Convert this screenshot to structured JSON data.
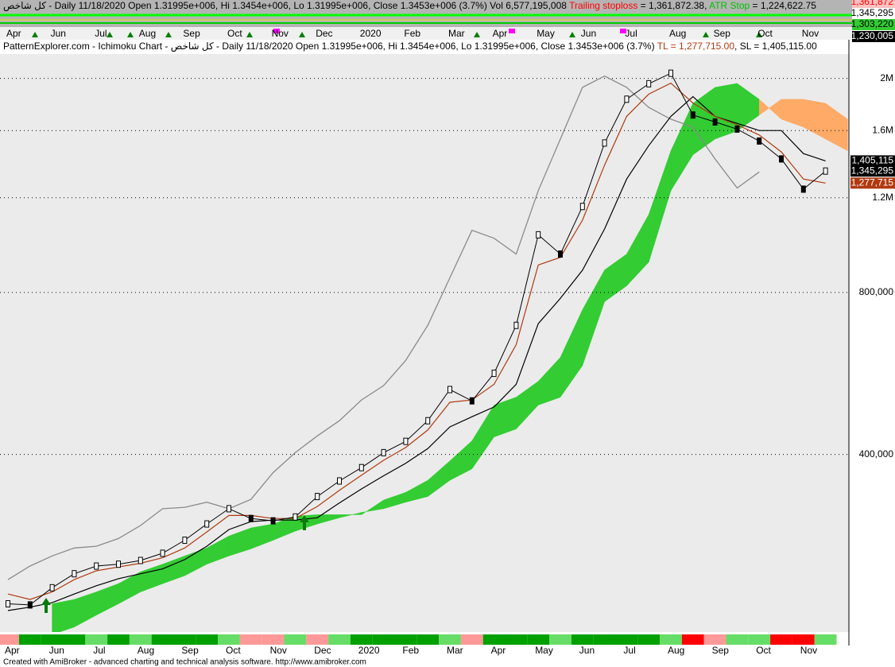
{
  "chart_data": {
    "type": "ichimoku",
    "header": "كل شاخص - Daily 11/18/2020 Open 1.31995e+006, Hi 1.3454e+006, Lo 1.31995e+006, Close 1.3453e+006 (3.7%) Vol 6,577,195,008 ",
    "header_alerts": [
      {
        "text": "Trailing stoploss",
        "color": "#ff0000"
      },
      {
        "text": " = 1,361,872.38, ",
        "color": "#000000"
      },
      {
        "text": "ATR Stop",
        "color": "#00c000"
      },
      {
        "text": " = 1,224,622.75",
        "color": "#000000"
      }
    ],
    "top_price_labels": [
      {
        "text": "1,361,872",
        "color": "#ff0000",
        "background": "#ffc0c0"
      },
      {
        "text": "1,345,295",
        "color": "#000000",
        "background": "#ffffff"
      },
      {
        "text": "1,303,220",
        "color": "#000000",
        "background": "#33cc33"
      },
      {
        "text": "1,230,005",
        "color": "#ffffff",
        "background": "#000000"
      }
    ],
    "title": "PatternExplorer.com - Ichimoku Chart - كل شاخص - Daily 11/18/2020 Open 1.31995e+006, Hi 1.3454e+006, Lo 1.31995e+006, Close 1.3453e+006 (3.7%) ",
    "status_items": [
      {
        "text": "TL = 1,277,715.00",
        "color": "#b03a10"
      },
      {
        "text": ", SL = 1,405,115.00",
        "color": "#000000"
      }
    ],
    "categories": [
      "Apr",
      null,
      "Jun",
      null,
      "Jul",
      null,
      "Aug",
      null,
      "Sep",
      null,
      "Oct",
      null,
      "Nov",
      null,
      "Dec",
      null,
      "2020",
      null,
      "Feb",
      null,
      "Mar",
      null,
      "Apr",
      null,
      "May",
      null,
      "Jun",
      null,
      "Jul",
      null,
      "Aug",
      null,
      "Sep",
      null,
      "Oct",
      null,
      "Nov",
      null,
      null
    ],
    "log_scale": true,
    "grid": true,
    "ylim": [
      187000,
      2220000
    ],
    "yticks": [
      {
        "value": 400000,
        "label": "400,000"
      },
      {
        "value": 800000,
        "label": "800,000"
      },
      {
        "value": 1200000,
        "label": "1.2M"
      },
      {
        "value": 1600000,
        "label": "1.6M"
      },
      {
        "value": 2000000,
        "label": "2M"
      }
    ],
    "cloud": {
      "up_color": "#33cc33",
      "down_color": "#ffaa66",
      "span_a": [
        null,
        null,
        211000,
        215000,
        222000,
        230000,
        242000,
        250000,
        259000,
        268000,
        282000,
        292000,
        297000,
        307000,
        309000,
        309000,
        309000,
        329000,
        340000,
        358000,
        389000,
        424000,
        494000,
        511000,
        547000,
        606000,
        743000,
        881000,
        943000,
        1117000,
        1467000,
        1798000,
        1925000,
        1958000,
        1829000,
        1680000,
        1624000,
        1543000,
        1467000
      ],
      "span_b": [
        null,
        null,
        185000,
        191000,
        201000,
        211000,
        222000,
        230000,
        238000,
        250000,
        259000,
        267000,
        277000,
        288000,
        297000,
        305000,
        312000,
        317000,
        326000,
        334000,
        358000,
        376000,
        431000,
        446000,
        494000,
        511000,
        585000,
        769000,
        823000,
        911000,
        1237000,
        1442000,
        1543000,
        1597000,
        1709000,
        1829000,
        1829000,
        1798000,
        1680000
      ]
    },
    "series": [
      {
        "style": "line",
        "color": "#8a8a8a",
        "width": 1.3,
        "values": [
          234000,
          248000,
          259000,
          268000,
          270000,
          279000,
          295000,
          317000,
          319000,
          326000,
          317000,
          330000,
          370000,
          403000,
          433000,
          462000,
          505000,
          537000,
          598000,
          695000,
          852000,
          1044000,
          1009000,
          943000,
          1237000,
          1543000,
          1925000,
          2020000,
          1925000,
          1767000,
          1680000,
          1624000,
          1417000,
          1251000,
          1340000,
          null,
          null,
          null,
          null
        ]
      },
      {
        "style": "line",
        "color": "#000000",
        "width": 1.2,
        "values": [
          205000,
          208000,
          212000,
          220000,
          228000,
          235000,
          240000,
          245000,
          255000,
          270000,
          290000,
          300000,
          302000,
          302000,
          305000,
          325000,
          345000,
          365000,
          385000,
          410000,
          450000,
          470000,
          490000,
          540000,
          700000,
          780000,
          880000,
          1050000,
          1300000,
          1500000,
          1700000,
          1850000,
          1700000,
          1650000,
          1600000,
          1600000,
          1450000,
          1405115,
          null
        ],
        "value_labels": [
          null,
          null,
          null,
          null,
          null,
          null,
          null,
          null,
          null,
          null,
          null,
          null,
          null,
          null,
          null,
          null,
          null,
          null,
          null,
          null,
          null,
          null,
          null,
          null,
          null,
          null,
          null,
          null,
          null,
          null,
          null,
          null,
          null,
          null,
          null,
          null,
          null,
          "1,405,115",
          null
        ]
      },
      {
        "style": "line",
        "color": "#b03a10",
        "width": 1.2,
        "values": [
          220000,
          215000,
          222000,
          234000,
          243000,
          247000,
          251000,
          257000,
          268000,
          287000,
          308000,
          308000,
          304000,
          304000,
          320000,
          343000,
          366000,
          390000,
          412000,
          444000,
          500000,
          505000,
          540000,
          640000,
          900000,
          930000,
          1090000,
          1380000,
          1700000,
          1870000,
          1960000,
          1800000,
          1700000,
          1640000,
          1570000,
          1460000,
          1300000,
          1277715,
          null
        ],
        "value_labels": [
          null,
          null,
          null,
          null,
          null,
          null,
          null,
          null,
          null,
          null,
          null,
          null,
          null,
          null,
          null,
          null,
          null,
          null,
          null,
          null,
          null,
          null,
          null,
          null,
          null,
          null,
          null,
          null,
          null,
          null,
          null,
          null,
          null,
          null,
          null,
          null,
          null,
          "1,277,715",
          null
        ]
      },
      {
        "style": "candles",
        "color": "#000000",
        "width": 1,
        "values": [
          211000,
          210000,
          226000,
          240000,
          248000,
          250000,
          254000,
          262000,
          277000,
          297000,
          317000,
          304000,
          301000,
          306000,
          334000,
          357000,
          378000,
          403000,
          423000,
          462000,
          528000,
          503000,
          566000,
          695000,
          1024000,
          943000,
          1156000,
          1517000,
          1830000,
          1955000,
          2045000,
          1710000,
          1660000,
          1610000,
          1530000,
          1417000,
          1245000,
          1345295,
          null
        ],
        "value_labels": [
          null,
          null,
          null,
          null,
          null,
          null,
          null,
          null,
          null,
          null,
          null,
          null,
          null,
          null,
          null,
          null,
          null,
          null,
          null,
          null,
          null,
          null,
          null,
          null,
          null,
          null,
          null,
          null,
          null,
          null,
          null,
          null,
          null,
          null,
          null,
          null,
          null,
          "1,345,295",
          null
        ]
      }
    ],
    "ribbon": [
      "#ff9999",
      "#00a000",
      "#00a000",
      "#00a000",
      "#66dd66",
      "#00a000",
      "#66dd66",
      "#00a000",
      "#00a000",
      "#00a000",
      "#66dd66",
      "#ff9999",
      "#ff9999",
      "#66dd66",
      "#ff9999",
      "#66dd66",
      "#00a000",
      "#00a000",
      "#00a000",
      "#00a000",
      "#66dd66",
      "#ff9999",
      "#00a000",
      "#00a000",
      "#00a000",
      "#66dd66",
      "#00a000",
      "#00a000",
      "#00a000",
      "#00a000",
      "#66dd66",
      "#ff0000",
      "#ff9999",
      "#66dd66",
      "#66dd66",
      "#ff0000",
      "#ff0000",
      "#66dd66"
    ],
    "footer": "Created with AmiBroker - advanced charting and technical analysis software. http://www.amibroker.com"
  }
}
